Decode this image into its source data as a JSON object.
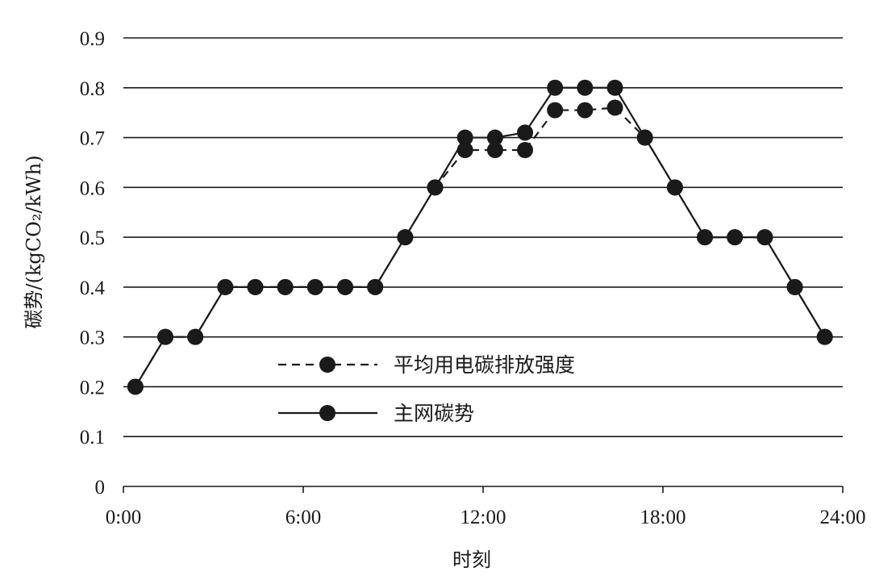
{
  "chart_data": {
    "type": "line",
    "title": "",
    "xlabel": "时刻",
    "ylabel": "碳势/(kgCO₂/kWh)",
    "xlim": [
      0,
      24
    ],
    "ylim": [
      0,
      0.9
    ],
    "x_ticks": [
      {
        "value": 0,
        "label": "0:00"
      },
      {
        "value": 6,
        "label": "6:00"
      },
      {
        "value": 12,
        "label": "12:00"
      },
      {
        "value": 18,
        "label": "18:00"
      },
      {
        "value": 24,
        "label": "24:00"
      }
    ],
    "y_ticks": [
      {
        "value": 0,
        "label": "0"
      },
      {
        "value": 0.1,
        "label": "0.1"
      },
      {
        "value": 0.2,
        "label": "0.2"
      },
      {
        "value": 0.3,
        "label": "0.3"
      },
      {
        "value": 0.4,
        "label": "0.4"
      },
      {
        "value": 0.5,
        "label": "0.5"
      },
      {
        "value": 0.6,
        "label": "0.6"
      },
      {
        "value": 0.7,
        "label": "0.7"
      },
      {
        "value": 0.8,
        "label": "0.8"
      },
      {
        "value": 0.9,
        "label": "0.9"
      }
    ],
    "grid": "horizontal",
    "legend_position": "center",
    "series": [
      {
        "name": "平均用电碳排放强度",
        "style": "dashed",
        "color": "#1a1a1a",
        "x": [
          0.4,
          1.4,
          2.4,
          3.4,
          4.4,
          5.4,
          6.4,
          7.4,
          8.4,
          9.4,
          10.4,
          11.4,
          12.4,
          13.4,
          14.4,
          15.4,
          16.4,
          17.4,
          18.4,
          19.4,
          20.4,
          21.4,
          22.4,
          23.4
        ],
        "values": [
          0.2,
          0.3,
          0.3,
          0.4,
          0.4,
          0.4,
          0.4,
          0.4,
          0.4,
          0.5,
          0.6,
          0.675,
          0.675,
          0.675,
          0.755,
          0.755,
          0.76,
          0.7,
          0.6,
          0.5,
          0.5,
          0.5,
          0.4,
          0.3
        ]
      },
      {
        "name": "主网碳势",
        "style": "solid",
        "color": "#1a1a1a",
        "x": [
          0.4,
          1.4,
          2.4,
          3.4,
          4.4,
          5.4,
          6.4,
          7.4,
          8.4,
          9.4,
          10.4,
          11.4,
          12.4,
          13.4,
          14.4,
          15.4,
          16.4,
          17.4,
          18.4,
          19.4,
          20.4,
          21.4,
          22.4,
          23.4
        ],
        "values": [
          0.2,
          0.3,
          0.3,
          0.4,
          0.4,
          0.4,
          0.4,
          0.4,
          0.4,
          0.5,
          0.6,
          0.7,
          0.7,
          0.71,
          0.8,
          0.8,
          0.8,
          0.7,
          0.6,
          0.5,
          0.5,
          0.5,
          0.4,
          0.3
        ]
      }
    ]
  }
}
